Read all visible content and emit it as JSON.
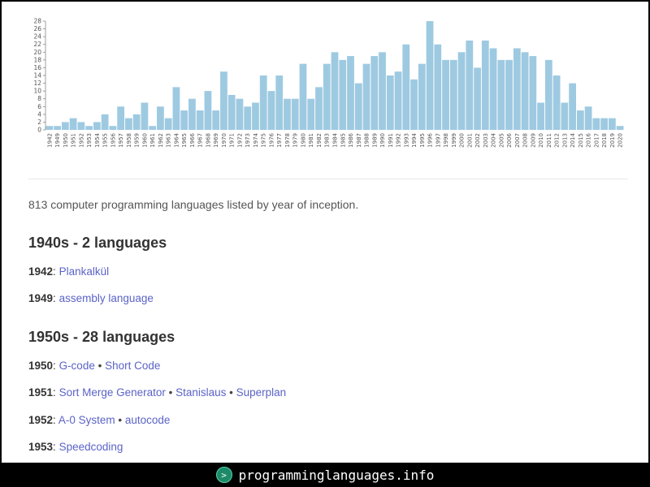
{
  "chart_data": {
    "type": "bar",
    "categories": [
      "1942",
      "1949",
      "1950",
      "1951",
      "1952",
      "1953",
      "1954",
      "1955",
      "1956",
      "1957",
      "1958",
      "1959",
      "1960",
      "1961",
      "1962",
      "1963",
      "1964",
      "1965",
      "1966",
      "1967",
      "1968",
      "1969",
      "1970",
      "1971",
      "1972",
      "1973",
      "1974",
      "1975",
      "1976",
      "1977",
      "1978",
      "1979",
      "1980",
      "1981",
      "1982",
      "1983",
      "1984",
      "1985",
      "1986",
      "1987",
      "1988",
      "1989",
      "1990",
      "1991",
      "1992",
      "1993",
      "1994",
      "1995",
      "1996",
      "1997",
      "1998",
      "1999",
      "2000",
      "2001",
      "2002",
      "2003",
      "2004",
      "2005",
      "2006",
      "2007",
      "2008",
      "2009",
      "2010",
      "2011",
      "2012",
      "2013",
      "2014",
      "2015",
      "2016",
      "2017",
      "2018",
      "2019",
      "2020"
    ],
    "values": [
      1,
      1,
      2,
      3,
      2,
      1,
      2,
      4,
      1,
      6,
      3,
      4,
      7,
      1,
      6,
      3,
      11,
      5,
      8,
      5,
      10,
      5,
      15,
      9,
      8,
      6,
      7,
      14,
      10,
      14,
      8,
      8,
      17,
      8,
      11,
      17,
      20,
      18,
      19,
      12,
      17,
      19,
      20,
      14,
      15,
      22,
      13,
      17,
      28,
      22,
      18,
      18,
      20,
      23,
      16,
      23,
      21,
      18,
      18,
      21,
      20,
      19,
      7,
      18,
      14,
      7,
      12,
      5,
      6,
      3,
      3,
      3,
      1
    ],
    "yticks": [
      0,
      2,
      4,
      6,
      8,
      10,
      12,
      14,
      16,
      18,
      20,
      22,
      24,
      26,
      28
    ],
    "ylim": [
      0,
      28
    ],
    "bar_color": "#9ecae1"
  },
  "summary": "813 computer programming languages listed by year of inception.",
  "decades": [
    {
      "title": "1940s - 2 languages",
      "years": [
        {
          "year": "1942",
          "languages": [
            "Plankalkül"
          ]
        },
        {
          "year": "1949",
          "languages": [
            "assembly language"
          ]
        }
      ]
    },
    {
      "title": "1950s - 28 languages",
      "years": [
        {
          "year": "1950",
          "languages": [
            "G-code",
            "Short Code"
          ]
        },
        {
          "year": "1951",
          "languages": [
            "Sort Merge Generator",
            "Stanislaus",
            "Superplan"
          ]
        },
        {
          "year": "1952",
          "languages": [
            "A-0 System",
            "autocode"
          ]
        },
        {
          "year": "1953",
          "languages": [
            "Speedcoding"
          ]
        }
      ]
    }
  ],
  "footer": {
    "logo_icon": "terminal-prompt-icon",
    "site": "programminglanguages.info"
  },
  "colors": {
    "link": "#5b63c7",
    "bar": "#9ecae1"
  }
}
